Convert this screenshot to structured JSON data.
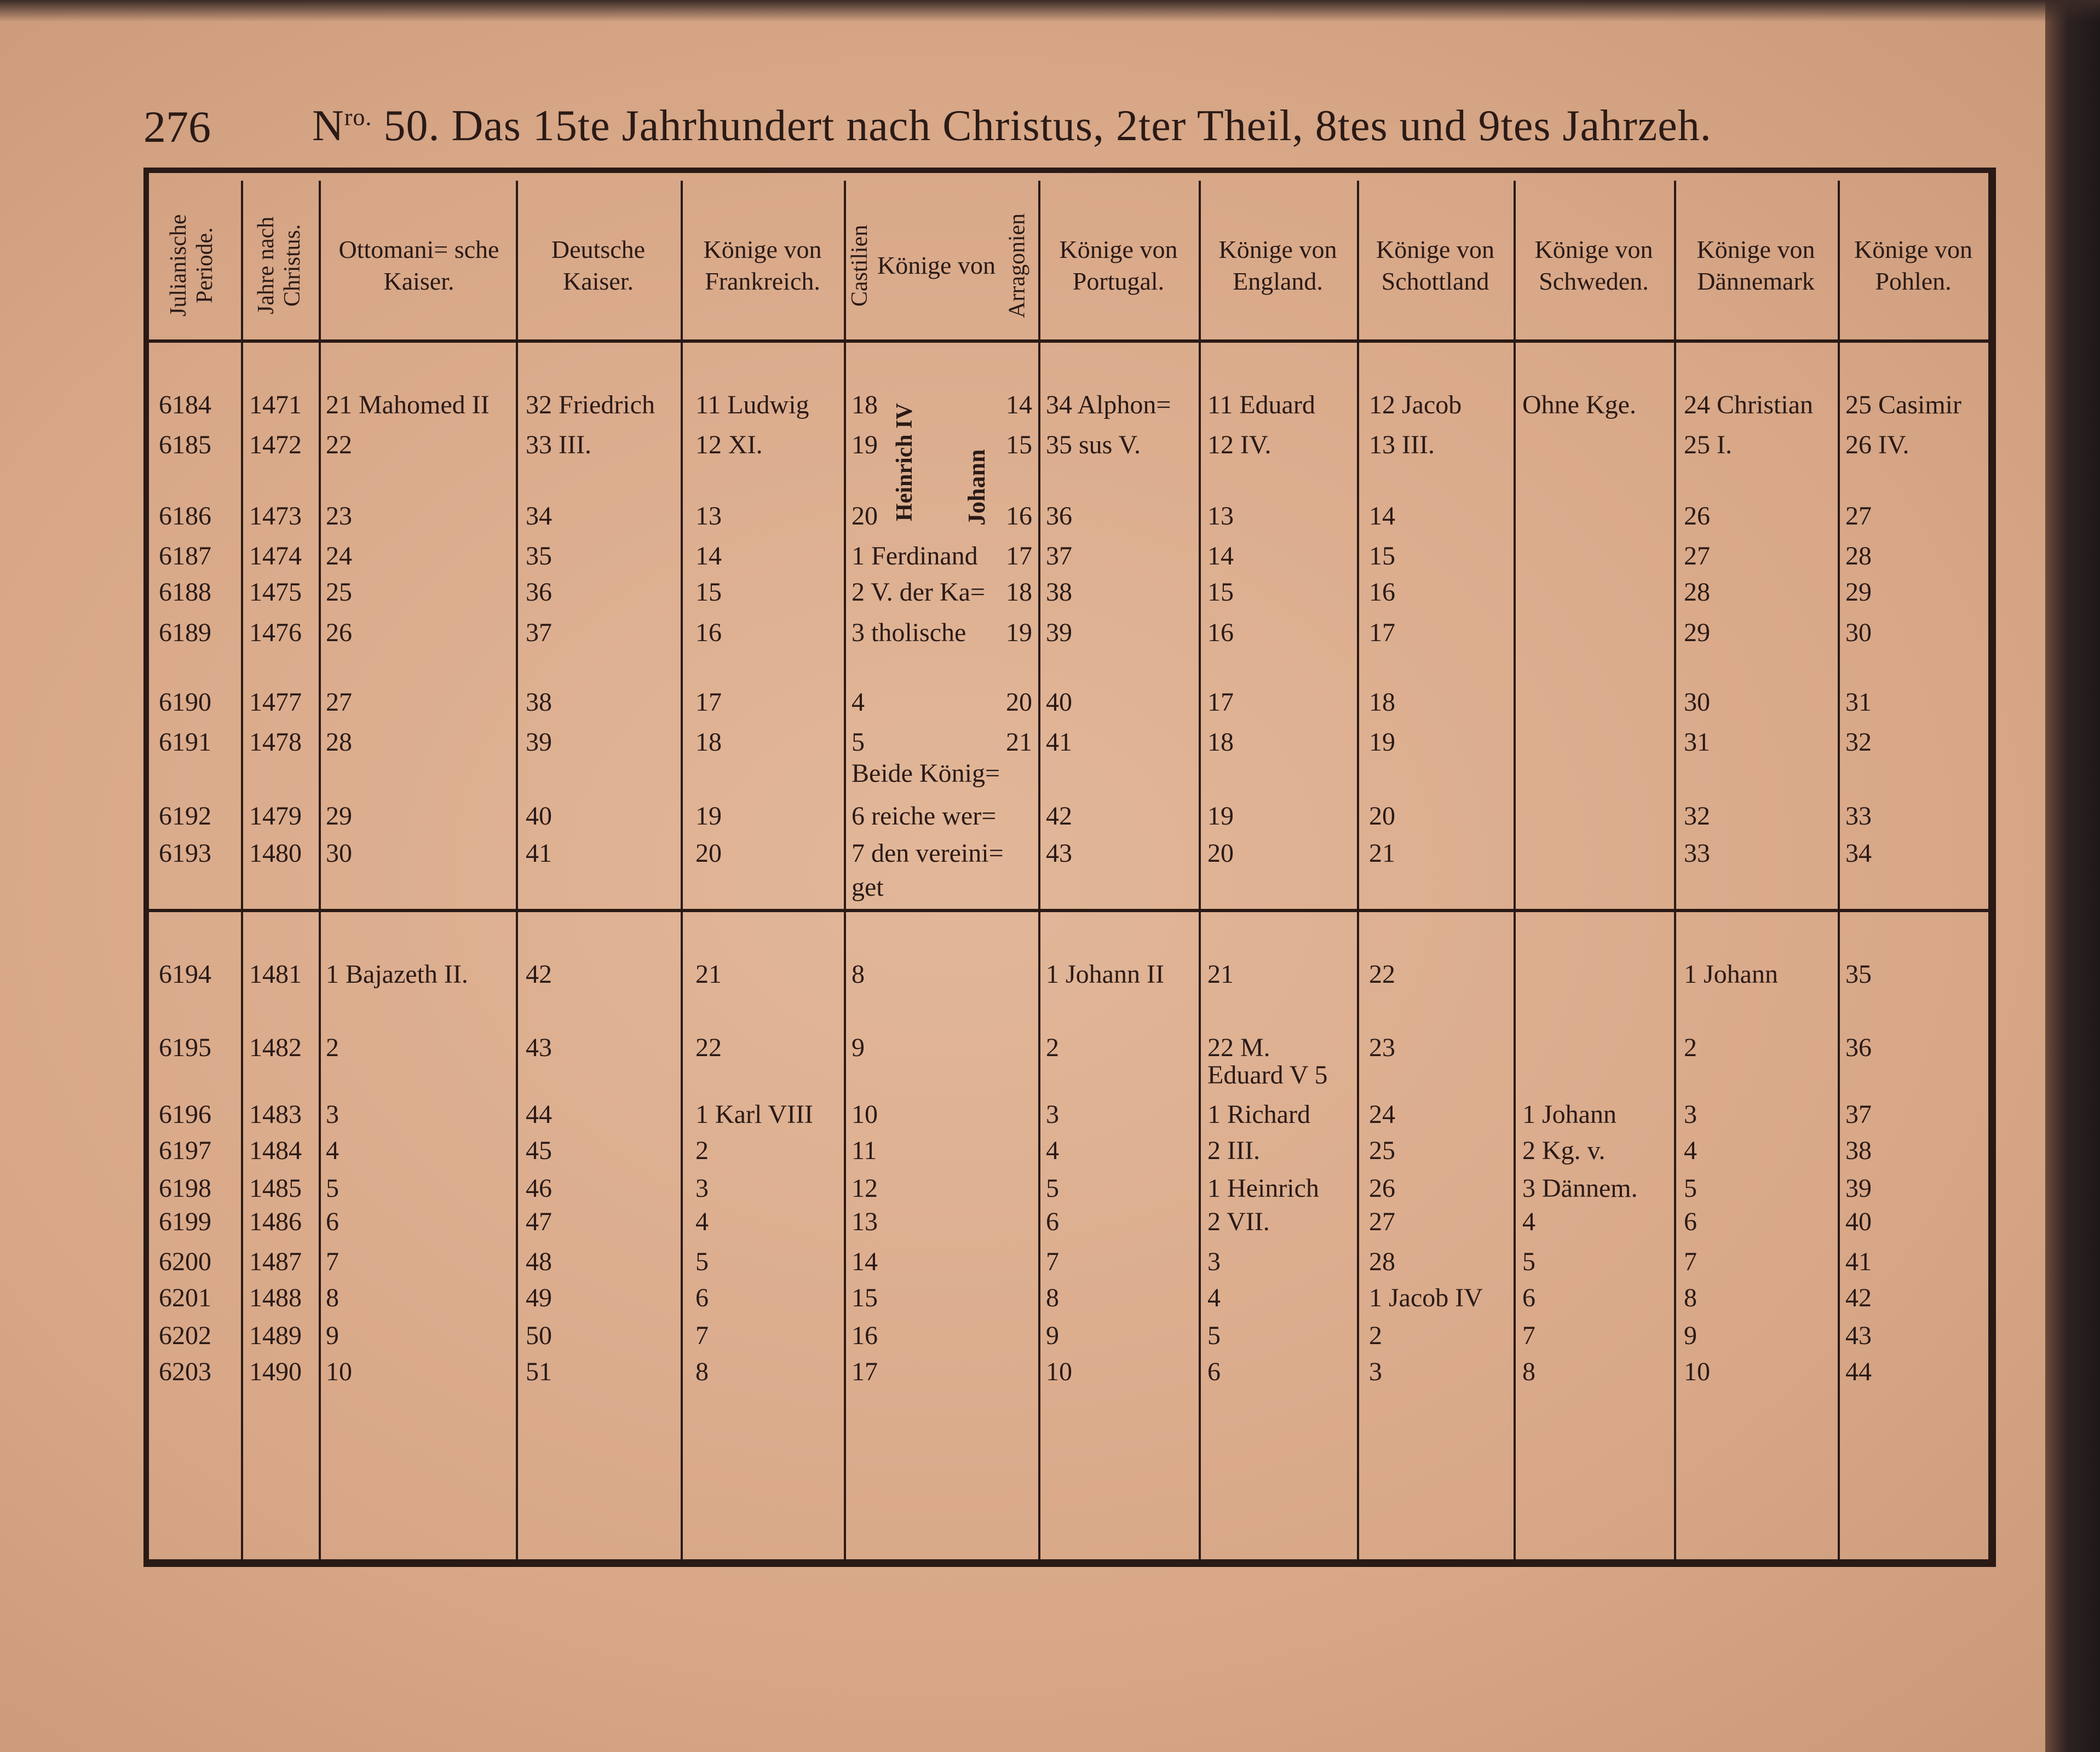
{
  "page_number": "276",
  "title": {
    "number_prefix": "N",
    "number_sup": "ro.",
    "text": " 50. Das 15te Jahrhundert nach Christus, 2ter Theil, 8tes und 9tes Jahrzeh."
  },
  "headers": {
    "julian": "Julianische Periode.",
    "year": "Jahre nach Christus.",
    "ottoman": "Ottomani= sche Kaiser.",
    "deutsche": "Deutsche Kaiser.",
    "frankreich": "Könige von Frankreich.",
    "castilien": "Castilien",
    "castilien_arragonien": "Könige von",
    "arragonien": "Arragonien",
    "portugal": "Könige von Portugal.",
    "england": "Könige von England.",
    "schottland": "Könige von Schottland",
    "schweden": "Könige von Schweden.",
    "daenemark": "Könige von Dännemark",
    "pohlen": "Könige von Pohlen."
  },
  "vertical_labels": {
    "castilien_king": "Heinrich IV",
    "arragonien_king": "Johann"
  },
  "rows": [
    [
      "6184",
      "1471",
      "21 Mahomed II",
      "32 Friedrich",
      "11 Ludwig",
      "18",
      "14",
      "34 Alphon=",
      "11 Eduard",
      "12 Jacob",
      "Ohne Kge.",
      "24 Christian",
      "25 Casimir"
    ],
    [
      "6185",
      "1472",
      "22",
      "33 III.",
      "12 XI.",
      "19",
      "15",
      "35 sus V.",
      "12 IV.",
      "13 III.",
      "",
      "25 I.",
      "26 IV."
    ],
    [
      "6186",
      "1473",
      "23",
      "34",
      "13",
      "20",
      "16",
      "36",
      "13",
      "14",
      "",
      "26",
      "27"
    ],
    [
      "6187",
      "1474",
      "24",
      "35",
      "14",
      "1 Ferdinand",
      "17",
      "37",
      "14",
      "15",
      "",
      "27",
      "28"
    ],
    [
      "6188",
      "1475",
      "25",
      "36",
      "15",
      "2 V. der Ka=",
      "18",
      "38",
      "15",
      "16",
      "",
      "28",
      "29"
    ],
    [
      "6189",
      "1476",
      "26",
      "37",
      "16",
      "3 tholische",
      "19",
      "39",
      "16",
      "17",
      "",
      "29",
      "30"
    ],
    [
      "6190",
      "1477",
      "27",
      "38",
      "17",
      "4",
      "20",
      "40",
      "17",
      "18",
      "",
      "30",
      "31"
    ],
    [
      "6191",
      "1478",
      "28",
      "39",
      "18",
      "5",
      "21",
      "41",
      "18",
      "19",
      "",
      "31",
      "32"
    ],
    [
      "",
      "",
      "",
      "",
      "",
      "  Beide König=",
      "",
      "",
      "",
      "",
      "",
      "",
      ""
    ],
    [
      "6192",
      "1479",
      "29",
      "40",
      "19",
      "6 reiche wer=",
      "",
      "42",
      "19",
      "20",
      "",
      "32",
      "33"
    ],
    [
      "6193",
      "1480",
      "30",
      "41",
      "20",
      "7 den vereini=",
      "",
      "43",
      "20",
      "21",
      "",
      "33",
      "34"
    ],
    [
      "",
      "",
      "",
      "",
      "",
      "  get",
      "",
      "",
      "",
      "",
      "",
      "",
      ""
    ],
    [
      "6194",
      "1481",
      "1 Bajazeth II.",
      "42",
      "21",
      "8",
      "",
      "1 Johann II",
      "21",
      "22",
      "",
      "1 Johann",
      "35"
    ],
    [
      "6195",
      "1482",
      "2",
      "43",
      "22",
      "9",
      "",
      "2",
      "22 M.",
      "23",
      "",
      "2",
      "36"
    ],
    [
      "",
      "",
      "",
      "",
      "",
      "",
      "",
      "",
      "Eduard V 5",
      "",
      "",
      "",
      ""
    ],
    [
      "6196",
      "1483",
      "3",
      "44",
      "1 Karl VIII",
      "10",
      "",
      "3",
      "1 Richard",
      "24",
      "1 Johann",
      "3",
      "37"
    ],
    [
      "6197",
      "1484",
      "4",
      "45",
      "2",
      "11",
      "",
      "4",
      "2 III.",
      "25",
      "2 Kg. v.",
      "4",
      "38"
    ],
    [
      "6198",
      "1485",
      "5",
      "46",
      "3",
      "12",
      "",
      "5",
      "1 Heinrich",
      "26",
      "3 Dännem.",
      "5",
      "39"
    ],
    [
      "6199",
      "1486",
      "6",
      "47",
      "4",
      "13",
      "",
      "6",
      "2 VII.",
      "27",
      "4",
      "6",
      "40"
    ],
    [
      "6200",
      "1487",
      "7",
      "48",
      "5",
      "14",
      "",
      "7",
      "3",
      "28",
      "5",
      "7",
      "41"
    ],
    [
      "6201",
      "1488",
      "8",
      "49",
      "6",
      "15",
      "",
      "8",
      "4",
      "1 Jacob IV",
      "6",
      "8",
      "42"
    ],
    [
      "6202",
      "1489",
      "9",
      "50",
      "7",
      "16",
      "",
      "9",
      "5",
      "2",
      "7",
      "9",
      "43"
    ],
    [
      "6203",
      "1490",
      "10",
      "51",
      "8",
      "17",
      "",
      "10",
      "6",
      "3",
      "8",
      "10",
      "44"
    ]
  ]
}
